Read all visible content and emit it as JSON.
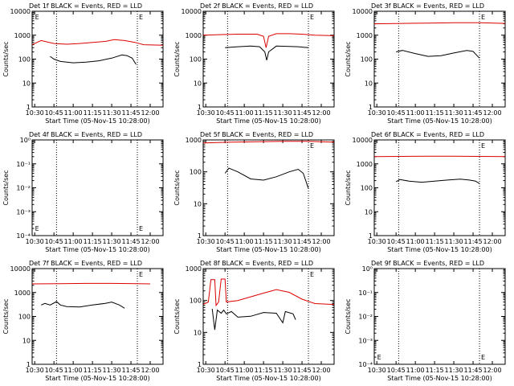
{
  "colors": {
    "events": "#000000",
    "lld": "#dd0000",
    "axis": "#000000",
    "background": "#ffffff"
  },
  "xaxis_ticks": [
    "10:30",
    "10:45",
    "11:00",
    "11:15",
    "11:30",
    "11:45",
    "12:00"
  ],
  "log_ticks_counts": [
    "1",
    "10",
    "100",
    "1000",
    "10000"
  ],
  "log_ticks_exp": [
    "10⁰",
    "10⁻¹",
    "10⁻²",
    "10⁻³",
    "10⁻⁴"
  ],
  "chart_data": [
    {
      "type": "line",
      "title": "Det 1f BLACK = Events, RED = LLD",
      "xlabel": "Start Time (05-Nov-15 10:28:00)",
      "ylabel": "Counts/sec",
      "yscale": "log",
      "ylim": [
        1,
        10000
      ],
      "ytick_style": "counts",
      "x_range_minutes": [
        -2,
        100
      ],
      "x_unit": "minutes after 10:30",
      "markers": [
        {
          "x": 17,
          "label": ""
        },
        {
          "x": 80,
          "label": "E"
        },
        {
          "x": -1,
          "label": "E"
        }
      ],
      "series": [
        {
          "name": "LLD",
          "color": "red",
          "points": [
            [
              -2,
              400
            ],
            [
              5,
              600
            ],
            [
              15,
              450
            ],
            [
              25,
              420
            ],
            [
              35,
              450
            ],
            [
              45,
              500
            ],
            [
              55,
              550
            ],
            [
              62,
              650
            ],
            [
              70,
              600
            ],
            [
              78,
              500
            ],
            [
              85,
              400
            ],
            [
              100,
              380
            ]
          ]
        },
        {
          "name": "Events",
          "color": "black",
          "points": [
            [
              12,
              130
            ],
            [
              15,
              100
            ],
            [
              20,
              80
            ],
            [
              30,
              70
            ],
            [
              40,
              75
            ],
            [
              50,
              85
            ],
            [
              60,
              110
            ],
            [
              68,
              150
            ],
            [
              72,
              140
            ],
            [
              76,
              110
            ],
            [
              79,
              60
            ]
          ]
        }
      ]
    },
    {
      "type": "line",
      "title": "Det 2f BLACK = Events, RED = LLD",
      "xlabel": "Start Time (05-Nov-15 10:28:00)",
      "ylabel": "Counts/sec",
      "yscale": "log",
      "ylim": [
        1,
        10000
      ],
      "ytick_style": "counts",
      "x_range_minutes": [
        -2,
        100
      ],
      "x_unit": "minutes after 10:30",
      "markers": [
        {
          "x": 17,
          "label": ""
        },
        {
          "x": 80,
          "label": "E"
        }
      ],
      "series": [
        {
          "name": "LLD",
          "color": "red",
          "points": [
            [
              -2,
              1000
            ],
            [
              10,
              1050
            ],
            [
              25,
              1100
            ],
            [
              40,
              1100
            ],
            [
              45,
              900
            ],
            [
              47,
              300
            ],
            [
              49,
              900
            ],
            [
              55,
              1150
            ],
            [
              65,
              1150
            ],
            [
              75,
              1100
            ],
            [
              85,
              1000
            ],
            [
              100,
              950
            ]
          ]
        },
        {
          "name": "Events",
          "color": "black",
          "points": [
            [
              15,
              300
            ],
            [
              25,
              330
            ],
            [
              35,
              350
            ],
            [
              42,
              330
            ],
            [
              46,
              200
            ],
            [
              47.5,
              90
            ],
            [
              49,
              200
            ],
            [
              55,
              350
            ],
            [
              65,
              340
            ],
            [
              72,
              330
            ],
            [
              80,
              300
            ]
          ]
        }
      ]
    },
    {
      "type": "line",
      "title": "Det 3f BLACK = Events, RED = LLD",
      "xlabel": "Start Time (05-Nov-15 10:28:00)",
      "ylabel": "Counts/sec",
      "yscale": "log",
      "ylim": [
        1,
        10000
      ],
      "ytick_style": "counts",
      "x_range_minutes": [
        -2,
        100
      ],
      "x_unit": "minutes after 10:30",
      "markers": [
        {
          "x": 17,
          "label": ""
        },
        {
          "x": 80,
          "label": "E"
        }
      ],
      "series": [
        {
          "name": "LLD",
          "color": "red",
          "points": [
            [
              -2,
              3000
            ],
            [
              20,
              3100
            ],
            [
              40,
              3200
            ],
            [
              60,
              3300
            ],
            [
              80,
              3300
            ],
            [
              100,
              3100
            ]
          ]
        },
        {
          "name": "Events",
          "color": "black",
          "points": [
            [
              15,
              200
            ],
            [
              20,
              230
            ],
            [
              30,
              170
            ],
            [
              40,
              130
            ],
            [
              50,
              140
            ],
            [
              60,
              180
            ],
            [
              70,
              230
            ],
            [
              75,
              210
            ],
            [
              80,
              110
            ]
          ]
        }
      ]
    },
    {
      "type": "line",
      "title": "Det 4f BLACK = Events, RED = LLD",
      "xlabel": "Start Time (05-Nov-15 10:28:00)",
      "ylabel": "Counts/sec",
      "yscale": "log",
      "ylim": [
        0.0001,
        1
      ],
      "ytick_style": "exp",
      "x_range_minutes": [
        -2,
        100
      ],
      "x_unit": "minutes after 10:30",
      "markers": [
        {
          "x": 17,
          "label": ""
        },
        {
          "x": 80,
          "label": "E"
        },
        {
          "x": -1,
          "label": "E"
        }
      ],
      "series": []
    },
    {
      "type": "line",
      "title": "Det 5f BLACK = Events, RED = LLD",
      "xlabel": "Start Time (05-Nov-15 10:28:00)",
      "ylabel": "Counts/sec",
      "yscale": "log",
      "ylim": [
        1,
        1000
      ],
      "ytick_style": "counts",
      "x_range_minutes": [
        -2,
        100
      ],
      "x_unit": "minutes after 10:30",
      "markers": [
        {
          "x": 17,
          "label": ""
        },
        {
          "x": 80,
          "label": "E"
        }
      ],
      "series": [
        {
          "name": "LLD",
          "color": "red",
          "points": [
            [
              -2,
              800
            ],
            [
              20,
              850
            ],
            [
              40,
              880
            ],
            [
              60,
              900
            ],
            [
              80,
              900
            ],
            [
              100,
              850
            ]
          ]
        },
        {
          "name": "Events",
          "color": "black",
          "points": [
            [
              15,
              90
            ],
            [
              18,
              130
            ],
            [
              25,
              100
            ],
            [
              35,
              60
            ],
            [
              45,
              55
            ],
            [
              55,
              70
            ],
            [
              65,
              100
            ],
            [
              72,
              120
            ],
            [
              76,
              90
            ],
            [
              80,
              30
            ]
          ]
        }
      ]
    },
    {
      "type": "line",
      "title": "Det 6f BLACK = Events, RED = LLD",
      "xlabel": "Start Time (05-Nov-15 10:28:00)",
      "ylabel": "Counts/sec",
      "yscale": "log",
      "ylim": [
        1,
        10000
      ],
      "ytick_style": "counts",
      "x_range_minutes": [
        -2,
        100
      ],
      "x_unit": "minutes after 10:30",
      "markers": [
        {
          "x": 17,
          "label": ""
        },
        {
          "x": 80,
          "label": "E"
        }
      ],
      "series": [
        {
          "name": "LLD",
          "color": "red",
          "points": [
            [
              -2,
              2000
            ],
            [
              20,
              2050
            ],
            [
              40,
              2100
            ],
            [
              60,
              2100
            ],
            [
              80,
              2050
            ],
            [
              100,
              2000
            ]
          ]
        },
        {
          "name": "Events",
          "color": "black",
          "points": [
            [
              15,
              180
            ],
            [
              18,
              220
            ],
            [
              25,
              190
            ],
            [
              35,
              170
            ],
            [
              45,
              190
            ],
            [
              55,
              210
            ],
            [
              65,
              230
            ],
            [
              72,
              210
            ],
            [
              77,
              190
            ],
            [
              80,
              150
            ]
          ]
        }
      ]
    },
    {
      "type": "line",
      "title": "Det 7f BLACK = Events, RED = LLD",
      "xlabel": "Start Time (05-Nov-15 10:28:00)",
      "ylabel": "Counts/sec",
      "yscale": "log",
      "ylim": [
        1,
        10000
      ],
      "ytick_style": "counts",
      "x_range_minutes": [
        -2,
        100
      ],
      "x_unit": "minutes after 10:30",
      "markers": [
        {
          "x": 17,
          "label": ""
        },
        {
          "x": 80,
          "label": "E"
        }
      ],
      "series": [
        {
          "name": "LLD",
          "color": "red",
          "points": [
            [
              -2,
              2300
            ],
            [
              20,
              2350
            ],
            [
              40,
              2400
            ],
            [
              60,
              2400
            ],
            [
              80,
              2350
            ],
            [
              90,
              2300
            ]
          ]
        },
        {
          "name": "Events",
          "color": "black",
          "points": [
            [
              5,
              300
            ],
            [
              8,
              350
            ],
            [
              12,
              300
            ],
            [
              17,
              420
            ],
            [
              20,
              300
            ],
            [
              25,
              260
            ],
            [
              35,
              250
            ],
            [
              45,
              300
            ],
            [
              55,
              350
            ],
            [
              60,
              400
            ],
            [
              66,
              300
            ],
            [
              70,
              220
            ]
          ]
        }
      ]
    },
    {
      "type": "line",
      "title": "Det 8f BLACK = Events, RED = LLD",
      "xlabel": "Start Time (05-Nov-15 10:28:00)",
      "ylabel": "Counts/sec",
      "yscale": "log",
      "ylim": [
        1,
        1000
      ],
      "ytick_style": "counts",
      "x_range_minutes": [
        -2,
        100
      ],
      "x_unit": "minutes after 10:30",
      "markers": [
        {
          "x": 17,
          "label": ""
        },
        {
          "x": 80,
          "label": "E"
        }
      ],
      "series": [
        {
          "name": "LLD",
          "color": "red",
          "points": [
            [
              -2,
              75
            ],
            [
              2,
              90
            ],
            [
              4,
              450
            ],
            [
              7,
              450
            ],
            [
              8,
              70
            ],
            [
              10,
              90
            ],
            [
              12,
              470
            ],
            [
              15,
              470
            ],
            [
              16,
              90
            ],
            [
              25,
              100
            ],
            [
              35,
              130
            ],
            [
              45,
              170
            ],
            [
              55,
              220
            ],
            [
              65,
              180
            ],
            [
              75,
              110
            ],
            [
              85,
              80
            ],
            [
              100,
              75
            ]
          ]
        },
        {
          "name": "Events",
          "color": "black",
          "points": [
            [
              5,
              55
            ],
            [
              7,
              12
            ],
            [
              9,
              50
            ],
            [
              12,
              40
            ],
            [
              14,
              50
            ],
            [
              16,
              38
            ],
            [
              20,
              45
            ],
            [
              25,
              30
            ],
            [
              35,
              32
            ],
            [
              45,
              42
            ],
            [
              55,
              40
            ],
            [
              60,
              20
            ],
            [
              62,
              45
            ],
            [
              68,
              38
            ],
            [
              70,
              25
            ]
          ]
        }
      ]
    },
    {
      "type": "line",
      "title": "Det 9f BLACK = Events, RED = LLD",
      "xlabel": "Start Time (05-Nov-15 10:28:00)",
      "ylabel": "Counts/sec",
      "yscale": "log",
      "ylim": [
        0.0001,
        1
      ],
      "ytick_style": "exp",
      "x_range_minutes": [
        -2,
        100
      ],
      "x_unit": "minutes after 10:30",
      "markers": [
        {
          "x": 17,
          "label": ""
        },
        {
          "x": 80,
          "label": "E"
        },
        {
          "x": -1,
          "label": "E"
        }
      ],
      "series": []
    }
  ]
}
